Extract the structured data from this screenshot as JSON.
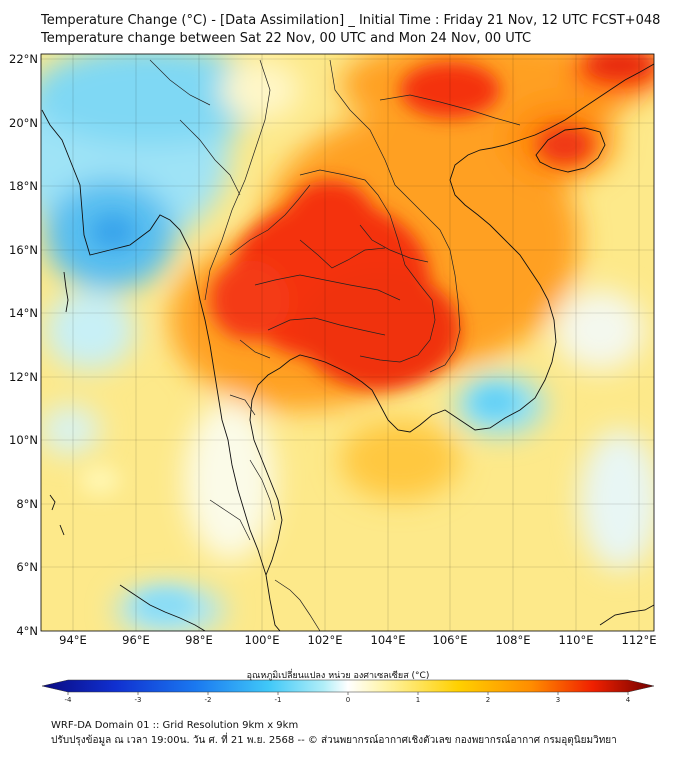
{
  "header": {
    "title": "Temperature Change (°C) - [Data Assimilation] _ Initial Time : Friday 21 Nov, 12 UTC FCST+048",
    "subtitle": "Temperature change between Sat 22 Nov, 00 UTC and Mon 24 Nov, 00 UTC"
  },
  "map": {
    "lon_range": [
      93,
      112.5
    ],
    "lat_range": [
      4,
      22.2
    ],
    "lon_ticks": [
      "94°E",
      "96°E",
      "98°E",
      "100°E",
      "102°E",
      "104°E",
      "106°E",
      "108°E",
      "110°E",
      "112°E"
    ],
    "lat_ticks": [
      "4°N",
      "6°N",
      "8°N",
      "10°N",
      "12°N",
      "14°N",
      "16°N",
      "18°N",
      "20°N",
      "22°N"
    ]
  },
  "colorbar": {
    "label": "อุณหภูมิเปลี่ยนแปลง หน่วย องศาเซลเซียส (°C)",
    "ticks": [
      "-4",
      "-3",
      "-2",
      "-1",
      "0",
      "1",
      "2",
      "3",
      "4"
    ],
    "min": -4,
    "max": 4,
    "colors": [
      "#0a0a80",
      "#1030d0",
      "#1a78f0",
      "#40c8f8",
      "#b0eef8",
      "#ffffff",
      "#fff4a8",
      "#ffd000",
      "#ff8c00",
      "#f02000",
      "#700000"
    ]
  },
  "footer": {
    "line1": "WRF-DA Domain 01 :: Grid Resolution 9km x 9km",
    "line2": "ปรับปรุงข้อมูล ณ เวลา 19:00น. วัน ศ. ที่ 21 พ.ย. 2568 -- © ส่วนพยากรณ์อากาศเชิงตัวเลข กองพยากรณ์อากาศ กรมอุตุนิยมวิทยา"
  }
}
